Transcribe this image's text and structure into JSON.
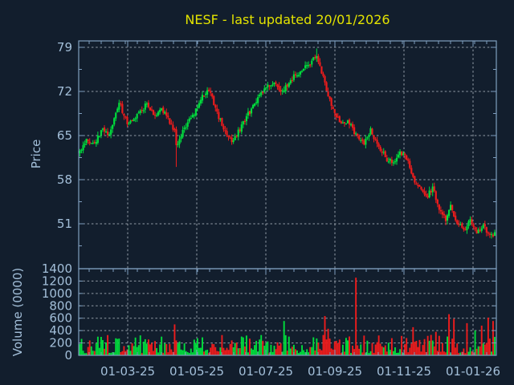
{
  "title": {
    "text": "NESF - last updated 20/01/2026"
  },
  "colors": {
    "background": "#121e2d",
    "up": "#00dd3c",
    "down": "#ee1c1c",
    "grid": "#aab2bc",
    "spine": "#7f9fbf",
    "tick_label": "#a3bfd9",
    "axis_label": "#a3bfd9",
    "title": "#e3e300"
  },
  "price_axis": {
    "label": "Price",
    "ticks": [
      79,
      72,
      65,
      58,
      51
    ]
  },
  "volume_axis": {
    "label": "Volume (0000)",
    "ticks": [
      1400,
      1200,
      1000,
      800,
      600,
      400,
      200,
      0
    ]
  },
  "x_axis": {
    "tick_labels": [
      "01-03-25",
      "01-05-25",
      "01-07-25",
      "01-09-25",
      "01-11-25",
      "01-01-26"
    ]
  },
  "chart_data": {
    "type": "candlestick",
    "symbol": "NESF",
    "last_updated": "20/01/2026",
    "title": "NESF - last updated 20/01/2026",
    "panels": [
      "price",
      "volume"
    ],
    "grid": "dotted",
    "legend": "none",
    "x_range_dates": [
      "2025-01-15",
      "2026-01-20"
    ],
    "trading_days": 255,
    "price_ylim": [
      44,
      80
    ],
    "price_tick_values": [
      51,
      58,
      65,
      72,
      79
    ],
    "volume_ylim": [
      0,
      1400
    ],
    "volume_tick_step": 200,
    "x_gridline_dates": [
      "01-03-25",
      "01-05-25",
      "01-07-25",
      "01-09-25",
      "01-11-25",
      "01-01-26"
    ],
    "price_anchors_day_close": [
      [
        0,
        62.5
      ],
      [
        4,
        64.5
      ],
      [
        9,
        63.6
      ],
      [
        14,
        66.3
      ],
      [
        18,
        64.9
      ],
      [
        24,
        70.3
      ],
      [
        29,
        66.9
      ],
      [
        36,
        68.4
      ],
      [
        41,
        70.0
      ],
      [
        46,
        68.2
      ],
      [
        50,
        69.4
      ],
      [
        55,
        67.2
      ],
      [
        58,
        65.5
      ],
      [
        59,
        63.2
      ],
      [
        64,
        66.2
      ],
      [
        70,
        68.6
      ],
      [
        75,
        71.4
      ],
      [
        79,
        72.3
      ],
      [
        84,
        68.6
      ],
      [
        89,
        65.6
      ],
      [
        93,
        64.3
      ],
      [
        97,
        65.6
      ],
      [
        102,
        68.0
      ],
      [
        107,
        69.9
      ],
      [
        110,
        71.4
      ],
      [
        114,
        72.9
      ],
      [
        118,
        73.5
      ],
      [
        123,
        72.1
      ],
      [
        126,
        72.6
      ],
      [
        131,
        74.4
      ],
      [
        136,
        75.4
      ],
      [
        141,
        76.5
      ],
      [
        145,
        77.7
      ],
      [
        148,
        75.2
      ],
      [
        152,
        71.3
      ],
      [
        156,
        68.6
      ],
      [
        160,
        66.6
      ],
      [
        165,
        67.1
      ],
      [
        170,
        64.6
      ],
      [
        174,
        63.6
      ],
      [
        178,
        65.8
      ],
      [
        183,
        63.1
      ],
      [
        188,
        61.3
      ],
      [
        193,
        60.6
      ],
      [
        196,
        62.2
      ],
      [
        200,
        61.4
      ],
      [
        204,
        58.2
      ],
      [
        208,
        56.6
      ],
      [
        212,
        55.1
      ],
      [
        216,
        56.7
      ],
      [
        220,
        53.6
      ],
      [
        224,
        51.6
      ],
      [
        227,
        53.7
      ],
      [
        231,
        51.1
      ],
      [
        235,
        50.1
      ],
      [
        239,
        51.4
      ],
      [
        243,
        49.6
      ],
      [
        247,
        50.6
      ],
      [
        251,
        49.1
      ],
      [
        254,
        49.4
      ]
    ],
    "wick_events_day_side_extend": [
      [
        59,
        "low",
        3.1
      ],
      [
        145,
        "high",
        0.8
      ]
    ],
    "volume_spikes_day_value_dir": [
      [
        58,
        500,
        "down"
      ],
      [
        100,
        290,
        "up"
      ],
      [
        125,
        555,
        "up"
      ],
      [
        150,
        635,
        "down"
      ],
      [
        152,
        430,
        "down"
      ],
      [
        169,
        1255,
        "down"
      ],
      [
        204,
        455,
        "down"
      ],
      [
        218,
        380,
        "down"
      ],
      [
        226,
        665,
        "down"
      ],
      [
        229,
        590,
        "down"
      ],
      [
        237,
        520,
        "down"
      ],
      [
        242,
        400,
        "up"
      ],
      [
        246,
        480,
        "down"
      ],
      [
        250,
        610,
        "down"
      ],
      [
        253,
        555,
        "down"
      ]
    ],
    "volume_base_range": [
      35,
      330
    ],
    "seed": 42
  }
}
